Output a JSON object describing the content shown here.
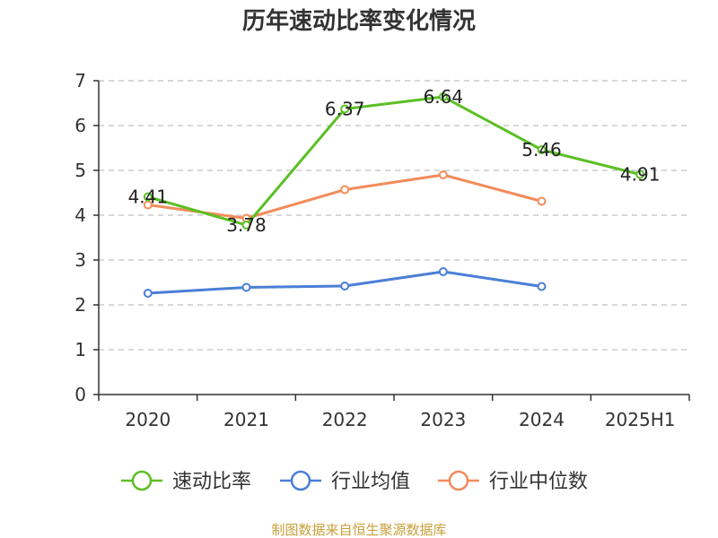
{
  "chart_data": {
    "type": "line",
    "title": "历年速动比率变化情况",
    "categories": [
      "2020",
      "2021",
      "2022",
      "2023",
      "2024",
      "2025H1"
    ],
    "ylim": [
      0,
      7
    ],
    "yticks": [
      0,
      1,
      2,
      3,
      4,
      5,
      6,
      7
    ],
    "grid": true,
    "legend_position": "bottom",
    "series": [
      {
        "name": "速动比率",
        "color": "#5cbf25",
        "values": [
          4.41,
          3.78,
          6.37,
          6.64,
          5.46,
          4.91
        ],
        "labels": [
          "4.41",
          "3.78",
          "6.37",
          "6.64",
          "5.46",
          "4.91"
        ]
      },
      {
        "name": "行业均值",
        "color": "#4a7fd6",
        "values": [
          2.26,
          2.39,
          2.42,
          2.74,
          2.41,
          null
        ]
      },
      {
        "name": "行业中位数",
        "color": "#f28c5a",
        "values": [
          4.23,
          3.93,
          4.57,
          4.9,
          4.31,
          null
        ]
      }
    ],
    "source": "制图数据来自恒生聚源数据库"
  }
}
